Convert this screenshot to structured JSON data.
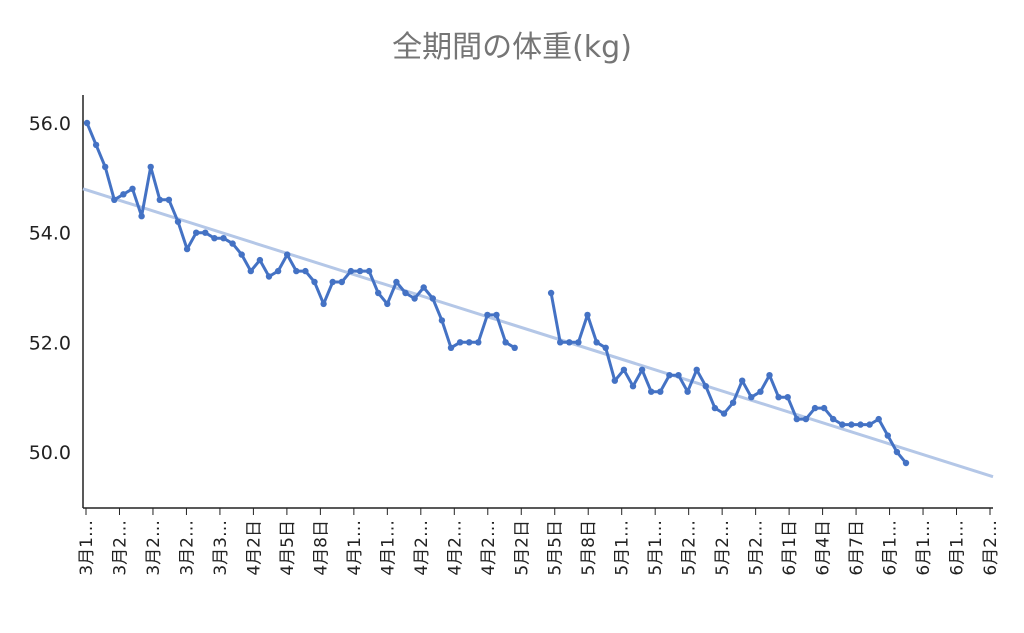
{
  "chart_data": {
    "type": "line",
    "title": "全期間の体重(kg)",
    "xlabel": "",
    "ylabel": "",
    "ylim": [
      49.0,
      56.5
    ],
    "yticks": [
      "50.0",
      "52.0",
      "54.0",
      "56.0"
    ],
    "ytick_values": [
      50,
      52,
      54,
      56
    ],
    "x_tick_labels": [
      "3月1…",
      "3月2…",
      "3月2…",
      "3月2…",
      "3月3…",
      "4月2日",
      "4月5日",
      "4月8日",
      "4月1…",
      "4月1…",
      "4月2…",
      "4月2…",
      "4月2…",
      "5月2日",
      "5月5日",
      "5月8日",
      "5月1…",
      "5月1…",
      "5月2…",
      "5月2…",
      "5月2…",
      "6月1日",
      "6月4日",
      "6月7日",
      "6月1…",
      "6月1…",
      "6月1…",
      "6月2…"
    ],
    "x_range": [
      0,
      100
    ],
    "grid": false,
    "series": [
      {
        "values": [
          56.0,
          55.6,
          55.2,
          54.6,
          54.7,
          54.8,
          54.3,
          55.2,
          54.6,
          54.6,
          54.2,
          53.7,
          54.0,
          54.0,
          53.9,
          53.9,
          53.8,
          53.6,
          53.3,
          53.5,
          53.2,
          53.3,
          53.6,
          53.3,
          53.3,
          53.1,
          52.7,
          53.1,
          53.1,
          53.3,
          53.3,
          53.3,
          52.9,
          52.7,
          53.1,
          52.9,
          52.8,
          53.0,
          52.8,
          52.4,
          51.9,
          52.0,
          52.0,
          52.0,
          52.5,
          52.5,
          52.0,
          51.9,
          null,
          null,
          null,
          52.9,
          52.0,
          52.0,
          52.0,
          52.5,
          52.0,
          51.9,
          51.3,
          51.5,
          51.2,
          51.5,
          51.1,
          51.1,
          51.4,
          51.4,
          51.1,
          51.5,
          51.2,
          50.8,
          50.7,
          50.9,
          51.3,
          51.0,
          51.1,
          51.4,
          51.0,
          51.0,
          50.6,
          50.6,
          50.8,
          50.8,
          50.6,
          50.5,
          50.5,
          50.5,
          50.5,
          50.6,
          50.3,
          50.0,
          49.8
        ]
      }
    ],
    "trendline": {
      "start": 54.8,
      "end": 49.55
    },
    "colors": {
      "line": "#4472c4",
      "trend": "#b4c7e7",
      "axis": "#222222",
      "title": "#757575"
    }
  }
}
